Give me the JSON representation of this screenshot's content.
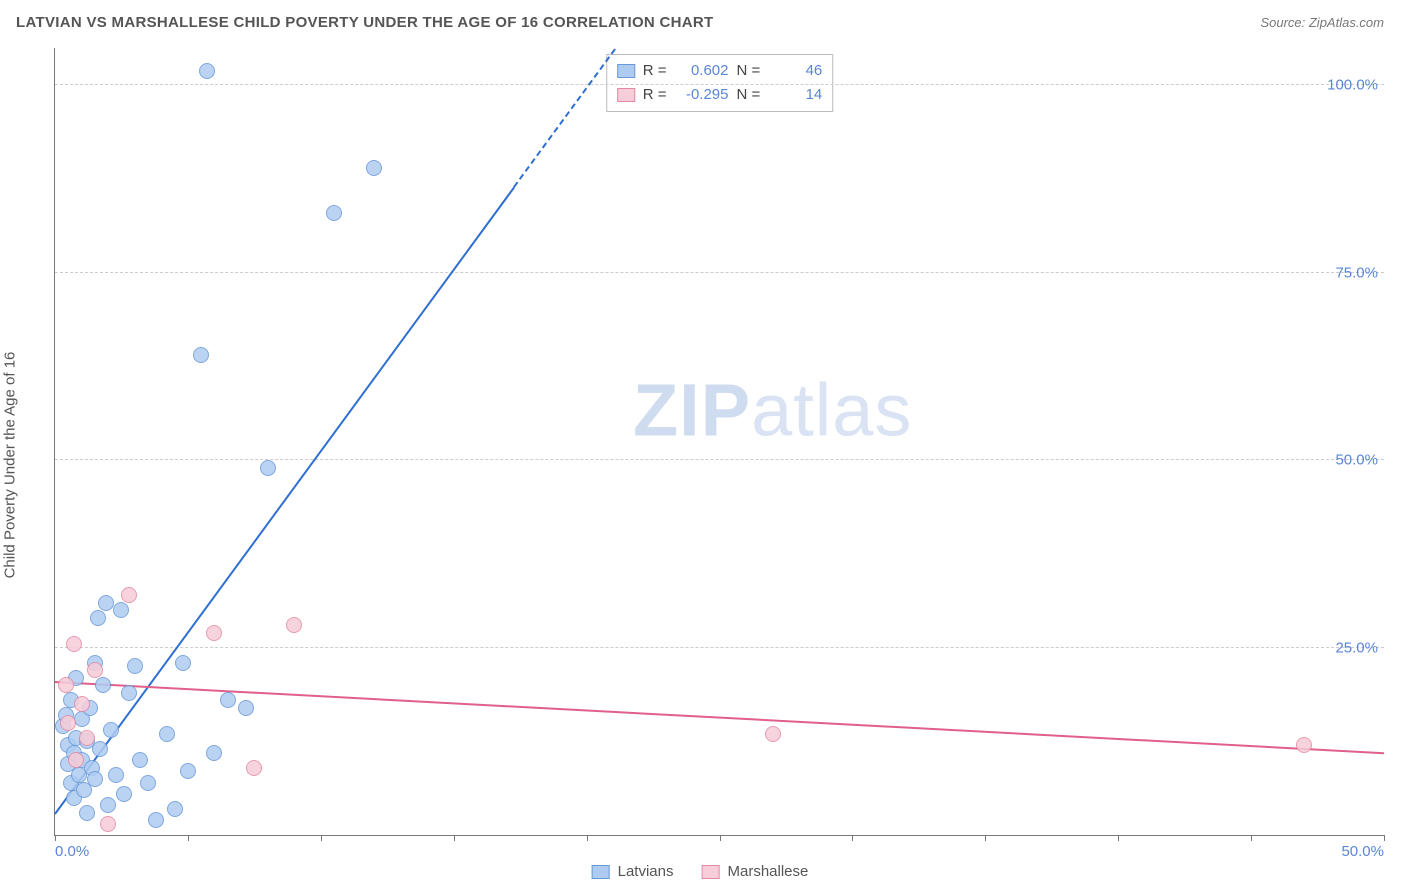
{
  "header": {
    "title": "LATVIAN VS MARSHALLESE CHILD POVERTY UNDER THE AGE OF 16 CORRELATION CHART",
    "source_prefix": "Source: ",
    "source_name": "ZipAtlas.com"
  },
  "watermark": {
    "part1": "ZIP",
    "part2": "atlas"
  },
  "chart": {
    "type": "scatter",
    "ylabel": "Child Poverty Under the Age of 16",
    "xlim": [
      0,
      50
    ],
    "ylim": [
      0,
      105
    ],
    "x_ticks": [
      0,
      5,
      10,
      15,
      20,
      25,
      30,
      35,
      40,
      45,
      50
    ],
    "x_tick_labels": {
      "0": "0.0%",
      "50": "50.0%"
    },
    "y_gridlines": [
      25,
      50,
      75,
      100
    ],
    "y_tick_labels": {
      "25": "25.0%",
      "50": "50.0%",
      "75": "75.0%",
      "100": "100.0%"
    },
    "background_color": "#ffffff",
    "grid_color": "#cccccc",
    "axis_color": "#777777",
    "tick_label_color": "#5b85d6",
    "marker_diameter": 16,
    "series": [
      {
        "name": "Latvians",
        "fill": "#aeccf2",
        "stroke": "#6a99d8",
        "trend_color": "#2f6fd0",
        "trend_y_at_xmin": 3,
        "trend_y_at_xmax": 245,
        "points": [
          [
            0.3,
            14.5
          ],
          [
            0.4,
            16.0
          ],
          [
            0.5,
            9.5
          ],
          [
            0.5,
            12.0
          ],
          [
            0.6,
            7.0
          ],
          [
            0.6,
            18.0
          ],
          [
            0.7,
            11.0
          ],
          [
            0.7,
            5.0
          ],
          [
            0.8,
            13.0
          ],
          [
            0.8,
            21.0
          ],
          [
            0.9,
            8.0
          ],
          [
            1.0,
            10.0
          ],
          [
            1.0,
            15.5
          ],
          [
            1.1,
            6.0
          ],
          [
            1.2,
            12.5
          ],
          [
            1.2,
            3.0
          ],
          [
            1.3,
            17.0
          ],
          [
            1.4,
            9.0
          ],
          [
            1.5,
            23.0
          ],
          [
            1.5,
            7.5
          ],
          [
            1.6,
            29.0
          ],
          [
            1.7,
            11.5
          ],
          [
            1.8,
            20.0
          ],
          [
            1.9,
            31.0
          ],
          [
            2.0,
            4.0
          ],
          [
            2.1,
            14.0
          ],
          [
            2.3,
            8.0
          ],
          [
            2.5,
            30.0
          ],
          [
            2.6,
            5.5
          ],
          [
            2.8,
            19.0
          ],
          [
            3.0,
            22.5
          ],
          [
            3.2,
            10.0
          ],
          [
            3.5,
            7.0
          ],
          [
            3.8,
            2.0
          ],
          [
            4.2,
            13.5
          ],
          [
            4.5,
            3.5
          ],
          [
            4.8,
            23.0
          ],
          [
            5.0,
            8.5
          ],
          [
            5.5,
            64.0
          ],
          [
            5.7,
            102.0
          ],
          [
            6.0,
            11.0
          ],
          [
            6.5,
            18.0
          ],
          [
            7.2,
            17.0
          ],
          [
            8.0,
            49.0
          ],
          [
            10.5,
            83.0
          ],
          [
            12.0,
            89.0
          ]
        ]
      },
      {
        "name": "Marshallese",
        "fill": "#f6cdd8",
        "stroke": "#e48aa4",
        "trend_color": "#e05f8b",
        "trend_y_at_xmin": 20.5,
        "trend_y_at_xmax": 11.0,
        "points": [
          [
            0.4,
            20.0
          ],
          [
            0.5,
            15.0
          ],
          [
            0.7,
            25.5
          ],
          [
            0.8,
            10.0
          ],
          [
            1.0,
            17.5
          ],
          [
            1.2,
            13.0
          ],
          [
            1.5,
            22.0
          ],
          [
            2.0,
            1.5
          ],
          [
            2.8,
            32.0
          ],
          [
            6.0,
            27.0
          ],
          [
            7.5,
            9.0
          ],
          [
            9.0,
            28.0
          ],
          [
            27.0,
            13.5
          ],
          [
            47.0,
            12.0
          ]
        ]
      }
    ],
    "stats_legend": {
      "rows": [
        {
          "swatch_fill": "#aeccf2",
          "swatch_stroke": "#6a99d8",
          "r_label": "R =",
          "r_value": "0.602",
          "n_label": "N =",
          "n_value": "46"
        },
        {
          "swatch_fill": "#f6cdd8",
          "swatch_stroke": "#e48aa4",
          "r_label": "R =",
          "r_value": "-0.295",
          "n_label": "N =",
          "n_value": "14"
        }
      ]
    },
    "bottom_legend": [
      {
        "swatch_fill": "#aeccf2",
        "swatch_stroke": "#6a99d8",
        "label": "Latvians"
      },
      {
        "swatch_fill": "#f6cdd8",
        "swatch_stroke": "#e48aa4",
        "label": "Marshallese"
      }
    ]
  }
}
